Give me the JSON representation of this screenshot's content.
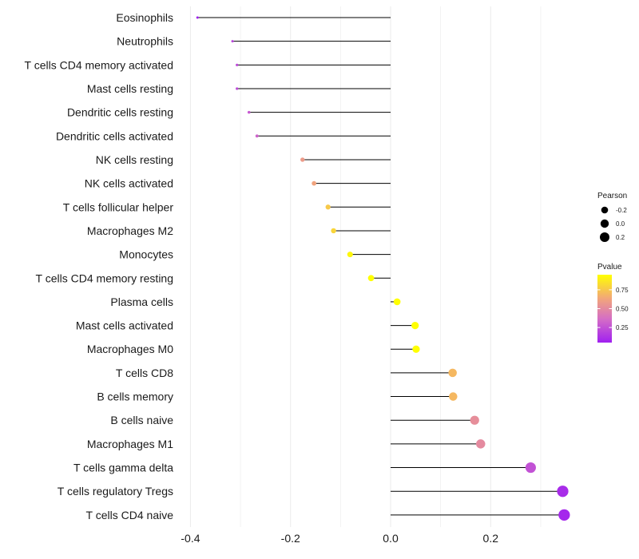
{
  "chart_data": {
    "type": "lollipop",
    "title": "",
    "xlabel": "",
    "ylabel": "",
    "xlim": [
      -0.4,
      0.35
    ],
    "x_ticks": [
      -0.4,
      -0.2,
      0.0,
      0.2
    ],
    "x_tick_labels": [
      "-0.4",
      "-0.2",
      "0.0",
      "0.2"
    ],
    "grid": true,
    "baseline": 0,
    "categories": [
      "Eosinophils",
      "Neutrophils",
      "T cells CD4 memory activated",
      "Mast cells resting",
      "Dendritic cells resting",
      "Dendritic cells activated",
      "NK cells resting",
      "NK cells activated",
      "T cells follicular helper",
      "Macrophages M2",
      "Monocytes",
      "T cells CD4 memory resting",
      "Plasma cells",
      "Mast cells activated",
      "Macrophages M0",
      "T cells CD8",
      "B cells memory",
      "B cells naive",
      "Macrophages M1",
      "T cells gamma delta",
      "T cells regulatory  Tregs",
      "T cells CD4 naive"
    ],
    "pearson": [
      -0.386,
      -0.316,
      -0.307,
      -0.307,
      -0.283,
      -0.267,
      -0.176,
      -0.153,
      -0.125,
      -0.114,
      -0.081,
      -0.039,
      0.013,
      0.049,
      0.051,
      0.124,
      0.125,
      0.168,
      0.18,
      0.28,
      0.344,
      0.347
    ],
    "pvalue": [
      0.05,
      0.2,
      0.22,
      0.22,
      0.28,
      0.32,
      0.58,
      0.62,
      0.76,
      0.8,
      0.92,
      1.0,
      1.0,
      0.97,
      0.96,
      0.7,
      0.7,
      0.52,
      0.5,
      0.25,
      0.1,
      0.08
    ],
    "legend": {
      "size_title": "Pearson",
      "size_values": [
        -0.2,
        0.0,
        0.2
      ],
      "size_labels": [
        "-0.2",
        "0.0",
        "0.2"
      ],
      "color_title": "Pvalue",
      "color_range": [
        0.05,
        0.95
      ],
      "color_ticks": [
        0.75,
        0.5,
        0.25
      ],
      "color_tick_labels": [
        "0.75",
        "0.50",
        "0.25"
      ],
      "placement": "right"
    },
    "colors": {
      "low": "#a020f0",
      "mid": "#e07ab8",
      "mid2": "#f0a878",
      "high": "#ffff00",
      "segment": "#000000",
      "grid": "#ebebeb"
    }
  }
}
